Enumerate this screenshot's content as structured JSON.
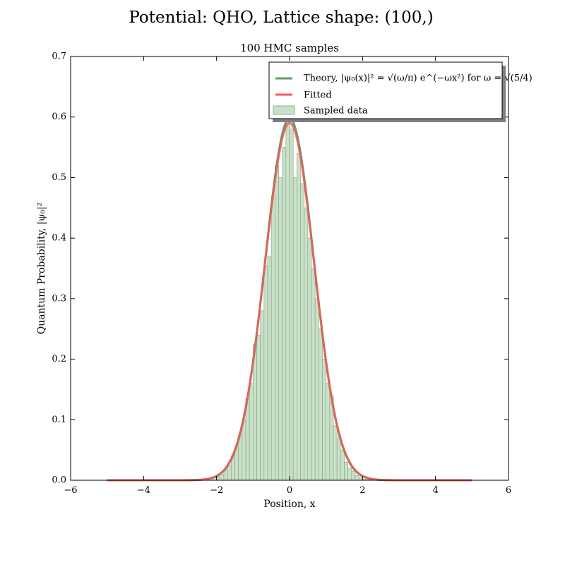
{
  "figure": {
    "suptitle": "Potential: QHO, Lattice shape: (100,)"
  },
  "chart_data": {
    "type": "histogram",
    "title": "100 HMC samples",
    "xlabel": "Position, x",
    "ylabel": "Quantum Probability, |ψ₀|²",
    "xlim": [
      -6,
      6
    ],
    "ylim": [
      0,
      0.7
    ],
    "xticks": [
      -6,
      -4,
      -2,
      0,
      2,
      4,
      6
    ],
    "yticks": [
      0.0,
      0.1,
      0.2,
      0.3,
      0.4,
      0.5,
      0.6,
      0.7
    ],
    "xtick_labels": [
      "−6",
      "−4",
      "−2",
      "0",
      "2",
      "4",
      "6"
    ],
    "ytick_labels": [
      "0.0",
      "0.1",
      "0.2",
      "0.3",
      "0.4",
      "0.5",
      "0.6",
      "0.7"
    ],
    "grid": false,
    "legend": {
      "placement": "top-right",
      "entries": [
        {
          "label": "Theory, |ψ₀(x)|² = √(ω/π) e^(−ωx²) for ω = √(5/4)",
          "color": "#5fa05f",
          "kind": "line"
        },
        {
          "label": "Fitted",
          "color": "#f05a5a",
          "kind": "line"
        },
        {
          "label": "Sampled data",
          "color": "#c8e2c8",
          "kind": "patch"
        }
      ]
    },
    "histogram": {
      "name": "Sampled data",
      "color": "#c8e2c8",
      "edgecolor": "#8a9a8a",
      "bin_width": 0.1,
      "bin_lefts": [
        -2.4,
        -2.3,
        -2.2,
        -2.1,
        -2.0,
        -1.9,
        -1.8,
        -1.7,
        -1.6,
        -1.5,
        -1.4,
        -1.3,
        -1.2,
        -1.1,
        -1.0,
        -0.9,
        -0.8,
        -0.7,
        -0.6,
        -0.5,
        -0.4,
        -0.3,
        -0.2,
        -0.1,
        0.0,
        0.1,
        0.2,
        0.3,
        0.4,
        0.5,
        0.6,
        0.7,
        0.8,
        0.9,
        1.0,
        1.1,
        1.2,
        1.3,
        1.4,
        1.5,
        1.6,
        1.7,
        1.8,
        1.9,
        2.0,
        2.1,
        2.2
      ],
      "heights": [
        0.001,
        0.002,
        0.003,
        0.004,
        0.006,
        0.01,
        0.016,
        0.025,
        0.04,
        0.055,
        0.075,
        0.1,
        0.135,
        0.16,
        0.225,
        0.24,
        0.28,
        0.355,
        0.37,
        0.47,
        0.52,
        0.5,
        0.55,
        0.595,
        0.58,
        0.5,
        0.54,
        0.49,
        0.45,
        0.4,
        0.35,
        0.3,
        0.25,
        0.2,
        0.16,
        0.14,
        0.09,
        0.07,
        0.05,
        0.03,
        0.02,
        0.015,
        0.008,
        0.004,
        0.002,
        0.001,
        0.0005
      ]
    },
    "series": [
      {
        "name": "Theory",
        "color": "#5fa05f",
        "function": "gaussian",
        "amplitude": 0.598,
        "width_coeff": 1.118,
        "x_range": [
          -5,
          5
        ]
      },
      {
        "name": "Fitted",
        "color": "#f05a5a",
        "function": "gaussian",
        "amplitude": 0.59,
        "width_coeff": 1.1,
        "x_range": [
          -5,
          5
        ]
      }
    ]
  }
}
